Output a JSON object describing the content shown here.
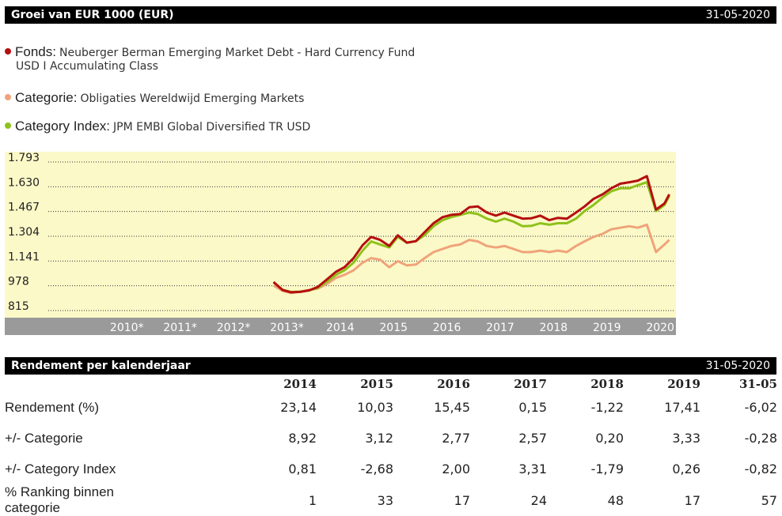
{
  "header": {
    "title": "Groei van EUR 1000 (EUR)",
    "date": "31-05-2020"
  },
  "legend": [
    {
      "key": "Fonds:",
      "value": "Neuberger Berman Emerging Market Debt - Hard Currency Fund",
      "value2": "USD I Accumulating Class",
      "color": "#b50f0f"
    },
    {
      "key": "Categorie:",
      "value": "Obligaties Wereldwijd Emerging Markets",
      "color": "#f0a37a"
    },
    {
      "key": "Category Index:",
      "value": "JPM EMBI Global Diversified TR USD",
      "color": "#8ec21a"
    }
  ],
  "chart_data": {
    "type": "line",
    "background": "#fbf9c8",
    "ytick_labels": [
      "1.793",
      "1.630",
      "1.467",
      "1.304",
      "1.141",
      "978",
      "815"
    ],
    "ylim": [
      815,
      1793
    ],
    "xtick_labels": [
      "2010*",
      "2011*",
      "2012*",
      "2013*",
      "2014",
      "2015",
      "2016",
      "2017",
      "2018",
      "2019",
      "2020"
    ],
    "grid": true,
    "x": [
      2013.0,
      2013.17,
      2013.33,
      2013.5,
      2013.67,
      2013.83,
      2014.0,
      2014.17,
      2014.33,
      2014.5,
      2014.67,
      2014.83,
      2015.0,
      2015.17,
      2015.33,
      2015.5,
      2015.67,
      2015.83,
      2016.0,
      2016.17,
      2016.33,
      2016.5,
      2016.67,
      2016.83,
      2017.0,
      2017.17,
      2017.33,
      2017.5,
      2017.67,
      2017.83,
      2018.0,
      2018.17,
      2018.33,
      2018.5,
      2018.67,
      2018.83,
      2019.0,
      2019.17,
      2019.33,
      2019.5,
      2019.67,
      2019.83,
      2020.0,
      2020.17,
      2020.33,
      2020.42
    ],
    "series": [
      {
        "name": "Fonds",
        "color": "#b50f0f",
        "values": [
          1003,
          950,
          935,
          938,
          948,
          970,
          1020,
          1070,
          1100,
          1160,
          1245,
          1300,
          1280,
          1240,
          1310,
          1262,
          1272,
          1330,
          1390,
          1430,
          1445,
          1450,
          1495,
          1500,
          1460,
          1440,
          1460,
          1440,
          1420,
          1422,
          1440,
          1410,
          1425,
          1420,
          1460,
          1500,
          1550,
          1580,
          1620,
          1650,
          1660,
          1670,
          1700,
          1480,
          1520,
          1580
        ]
      },
      {
        "name": "Categorie",
        "color": "#f0a37a",
        "values": [
          980,
          945,
          930,
          940,
          950,
          960,
          990,
          1030,
          1050,
          1080,
          1130,
          1160,
          1150,
          1100,
          1140,
          1112,
          1118,
          1160,
          1200,
          1220,
          1240,
          1250,
          1280,
          1270,
          1240,
          1230,
          1240,
          1220,
          1200,
          1200,
          1210,
          1200,
          1210,
          1200,
          1240,
          1270,
          1300,
          1320,
          1350,
          1360,
          1370,
          1360,
          1380,
          1200,
          1250,
          1280
        ]
      },
      {
        "name": "Category Index",
        "color": "#8ec21a",
        "values": [
          1000,
          952,
          937,
          940,
          947,
          965,
          1005,
          1050,
          1080,
          1130,
          1210,
          1270,
          1250,
          1230,
          1300,
          1262,
          1272,
          1310,
          1370,
          1410,
          1430,
          1445,
          1460,
          1450,
          1420,
          1400,
          1420,
          1400,
          1370,
          1372,
          1390,
          1380,
          1390,
          1390,
          1420,
          1470,
          1510,
          1560,
          1600,
          1620,
          1620,
          1640,
          1660,
          1470,
          1510,
          1570
        ]
      }
    ]
  },
  "returns": {
    "title": "Rendement per kalenderjaar",
    "date": "31-05-2020",
    "columns": [
      "2014",
      "2015",
      "2016",
      "2017",
      "2018",
      "2019",
      "31-05"
    ],
    "rows": [
      {
        "label": "Rendement (%)",
        "values": [
          "23,14",
          "10,03",
          "15,45",
          "0,15",
          "-1,22",
          "17,41",
          "-6,02"
        ]
      },
      {
        "label": "+/- Categorie",
        "values": [
          "8,92",
          "3,12",
          "2,77",
          "2,57",
          "0,20",
          "3,33",
          "-0,28"
        ]
      },
      {
        "label": "+/- Category Index",
        "values": [
          "0,81",
          "-2,68",
          "2,00",
          "3,31",
          "-1,79",
          "0,26",
          "-0,82"
        ]
      },
      {
        "label": "% Ranking binnen categorie",
        "values": [
          "1",
          "33",
          "17",
          "24",
          "48",
          "17",
          "57"
        ]
      }
    ]
  }
}
